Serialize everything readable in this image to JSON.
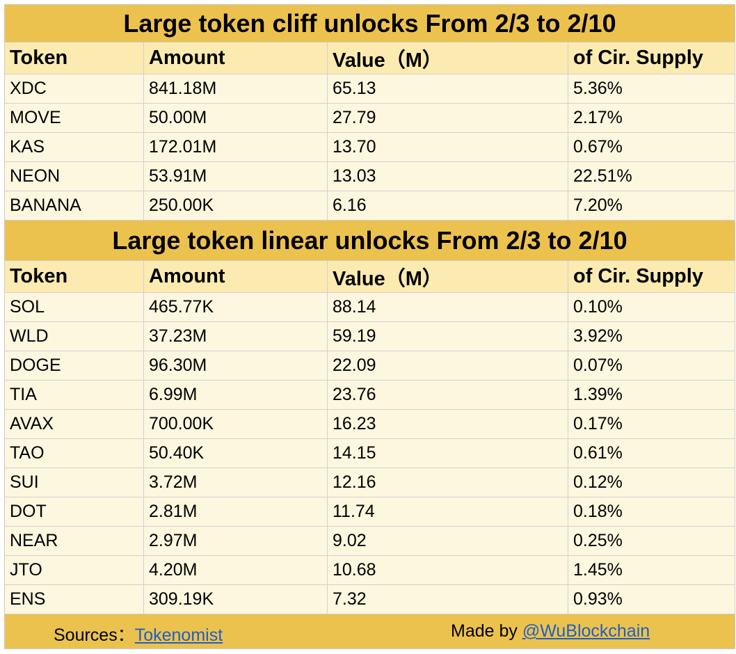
{
  "cliff": {
    "title": "Large token cliff unlocks From 2/3 to 2/10",
    "headers": [
      "Token",
      "Amount",
      "Value（M）",
      "of Cir. Supply"
    ],
    "rows": [
      [
        "XDC",
        "841.18M",
        "65.13",
        "5.36%"
      ],
      [
        "MOVE",
        "50.00M",
        "27.79",
        "2.17%"
      ],
      [
        "KAS",
        "172.01M",
        "13.70",
        "0.67%"
      ],
      [
        "NEON",
        "53.91M",
        "13.03",
        "22.51%"
      ],
      [
        "BANANA",
        "250.00K",
        "6.16",
        "7.20%"
      ]
    ]
  },
  "linear": {
    "title": "Large token linear unlocks From  2/3 to 2/10",
    "headers": [
      "Token",
      "Amount",
      "Value（M）",
      "of Cir. Supply"
    ],
    "rows": [
      [
        "SOL",
        "465.77K",
        "88.14",
        "0.10%"
      ],
      [
        "WLD",
        "37.23M",
        "59.19",
        "3.92%"
      ],
      [
        "DOGE",
        "96.30M",
        "22.09",
        "0.07%"
      ],
      [
        "TIA",
        "6.99M",
        "23.76",
        "1.39%"
      ],
      [
        "AVAX",
        "700.00K",
        "16.23",
        "0.17%"
      ],
      [
        "TAO",
        "50.40K",
        "14.15",
        "0.61%"
      ],
      [
        "SUI",
        "3.72M",
        "12.16",
        "0.12%"
      ],
      [
        "DOT",
        "2.81M",
        "11.74",
        "0.18%"
      ],
      [
        "NEAR",
        "2.97M",
        "9.02",
        "0.25%"
      ],
      [
        "JTO",
        "4.20M",
        "10.68",
        "1.45%"
      ],
      [
        "ENS",
        "309.19K",
        "7.32",
        "0.93%"
      ]
    ]
  },
  "footer": {
    "sources_label": "Sources：",
    "sources_link": "Tokenomist",
    "made_label": "Made by ",
    "made_link": "@WuBlockchain"
  },
  "colors": {
    "title_bg": "#ecc24f",
    "header_bg": "#fcebb0",
    "row_bg": "#fdf7df",
    "link": "#1f5fc4"
  }
}
